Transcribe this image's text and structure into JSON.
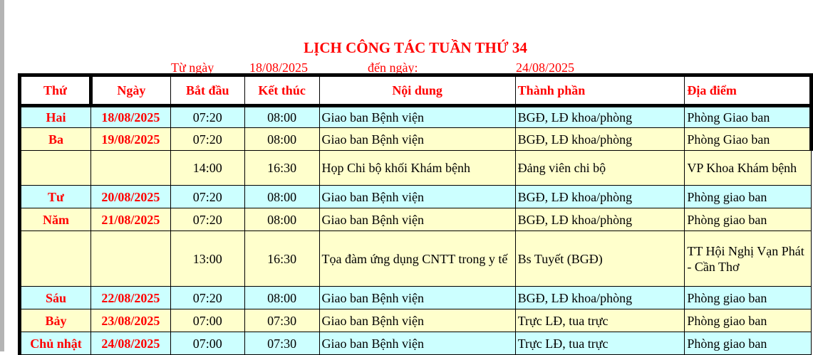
{
  "title": "LỊCH CÔNG TÁC TUẦN THỨ 34",
  "range": {
    "from_label": "Từ ngày",
    "from": "18/08/2025",
    "to_label": "đến ngày:",
    "to": "24/08/2025"
  },
  "colors": {
    "cyan_row": "#ccffff",
    "yellow_row": "#ffffcc",
    "accent": "#ff0000"
  },
  "headers": [
    "Thứ",
    "Ngày",
    "Bắt đầu",
    "Kết thúc",
    "Nội dung",
    "Thành phần",
    "Địa điểm"
  ],
  "rows": [
    {
      "day": "Hai",
      "date": "18/08/2025",
      "start": "07:20",
      "end": "08:00",
      "content": "Giao ban Bệnh viện",
      "members": "BGĐ, LĐ khoa/phòng",
      "place": "Phòng Giao ban",
      "color": "cyan"
    },
    {
      "day": "Ba",
      "date": "19/08/2025",
      "start": "07:20",
      "end": "08:00",
      "content": "Giao ban Bệnh viện",
      "members": "BGĐ, LĐ khoa/phòng",
      "place": "Phòng Giao ban",
      "color": "yellow"
    },
    {
      "day": "",
      "date": "",
      "start": "14:00",
      "end": "16:30",
      "content": "Họp Chi bộ khối Khám bệnh",
      "members": "Đảng viên chi bộ",
      "place": "VP Khoa Khám bệnh",
      "color": "yellow"
    },
    {
      "day": "Tư",
      "date": "20/08/2025",
      "start": "07:20",
      "end": "08:00",
      "content": "Giao ban Bệnh viện",
      "members": "BGĐ, LĐ khoa/phòng",
      "place": "Phòng  giao ban",
      "color": "cyan"
    },
    {
      "day": "Năm",
      "date": "21/08/2025",
      "start": "07:20",
      "end": "08:00",
      "content": "Giao ban Bệnh viện",
      "members": "BGĐ, LĐ khoa/phòng",
      "place": "Phòng  giao ban",
      "color": "yellow"
    },
    {
      "day": "",
      "date": "",
      "start": "13:00",
      "end": "16:30",
      "content": "Tọa đàm ứng dụng CNTT trong y tế",
      "members": "Bs Tuyết (BGĐ)",
      "place": "TT Hội Nghị Vạn Phát - Cần Thơ",
      "color": "yellow"
    },
    {
      "day": "Sáu",
      "date": "22/08/2025",
      "start": "07:20",
      "end": "08:00",
      "content": "Giao ban Bệnh viện",
      "members": "BGĐ, LĐ khoa/phòng",
      "place": "Phòng  giao ban",
      "color": "cyan"
    },
    {
      "day": "Bảy",
      "date": "23/08/2025",
      "start": "07:00",
      "end": "07:30",
      "content": "Giao ban Bệnh viện",
      "members": "Trực LĐ, tua trực",
      "place": "Phòng  giao ban",
      "color": "yellow"
    },
    {
      "day": "Chủ nhật",
      "date": "24/08/2025",
      "start": "07:00",
      "end": "07:30",
      "content": "Giao ban Bệnh viện",
      "members": "Trực LĐ, tua trực",
      "place": "Phòng  giao ban",
      "color": "cyan"
    }
  ]
}
